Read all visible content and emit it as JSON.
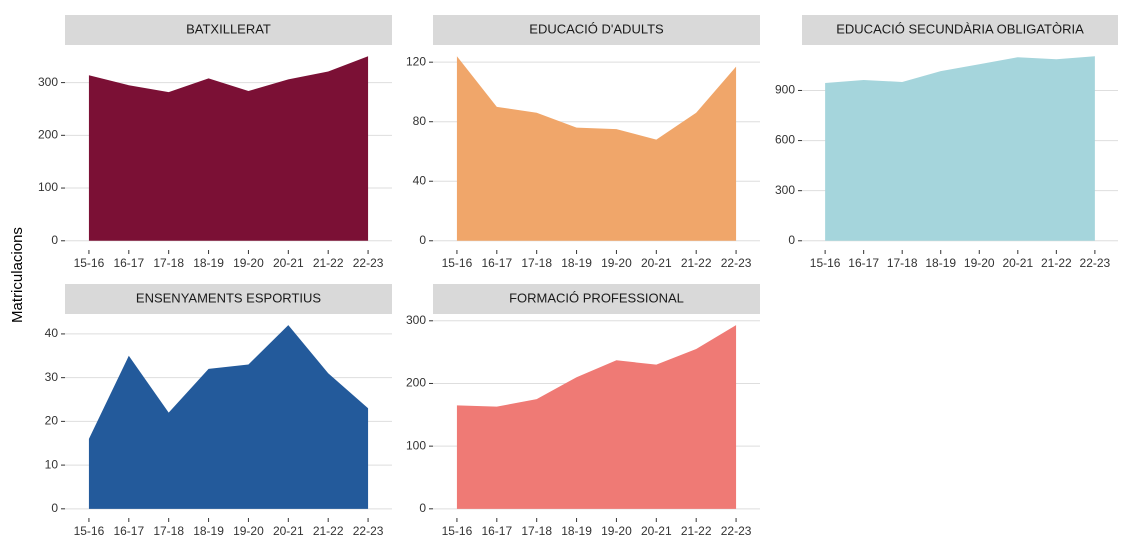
{
  "ylabel": "Matriculacions",
  "chart_data": [
    {
      "type": "area",
      "title": "BATXILLERAT",
      "categories": [
        "15-16",
        "16-17",
        "17-18",
        "18-19",
        "19-20",
        "20-21",
        "21-22",
        "22-23"
      ],
      "values": [
        314,
        295,
        282,
        308,
        284,
        306,
        321,
        350
      ],
      "color": "#7b1035",
      "ylim": [
        -17.5,
        367.5
      ],
      "yticks": [
        0,
        100,
        200,
        300
      ],
      "grid": true
    },
    {
      "type": "area",
      "title": "EDUCACIÓ D'ADULTS",
      "categories": [
        "15-16",
        "16-17",
        "17-18",
        "18-19",
        "19-20",
        "20-21",
        "21-22",
        "22-23"
      ],
      "values": [
        124,
        90,
        86,
        76,
        75,
        68,
        86,
        117
      ],
      "color": "#f0a66a",
      "ylim": [
        -6.2,
        130.2
      ],
      "yticks": [
        0,
        40,
        80,
        120
      ],
      "grid": true
    },
    {
      "type": "area",
      "title": "EDUCACIÓ SECUNDÀRIA OBLIGATÒRIA",
      "categories": [
        "15-16",
        "16-17",
        "17-18",
        "18-19",
        "19-20",
        "20-21",
        "21-22",
        "22-23"
      ],
      "values": [
        945,
        963,
        951,
        1016,
        1057,
        1099,
        1087,
        1105
      ],
      "color": "#a5d5dc",
      "ylim": [
        -55.25,
        1160.25
      ],
      "yticks": [
        0,
        300,
        600,
        900
      ],
      "grid": true
    },
    {
      "type": "area",
      "title": "ENSENYAMENTS ESPORTIUS",
      "categories": [
        "15-16",
        "16-17",
        "17-18",
        "18-19",
        "19-20",
        "20-21",
        "21-22",
        "22-23"
      ],
      "values": [
        16,
        35,
        22,
        32,
        33,
        42,
        31,
        23
      ],
      "color": "#235a9b",
      "ylim": [
        -2.1,
        44.1
      ],
      "yticks": [
        0,
        10,
        20,
        30,
        40
      ],
      "grid": true
    },
    {
      "type": "area",
      "title": "FORMACIÓ PROFESSIONAL",
      "categories": [
        "15-16",
        "16-17",
        "17-18",
        "18-19",
        "19-20",
        "20-21",
        "21-22",
        "22-23"
      ],
      "values": [
        165,
        163,
        175,
        210,
        237,
        230,
        255,
        293
      ],
      "color": "#ef7a75",
      "ylim": [
        -14.65,
        307.65
      ],
      "yticks": [
        0,
        100,
        200,
        300
      ],
      "grid": true
    }
  ]
}
